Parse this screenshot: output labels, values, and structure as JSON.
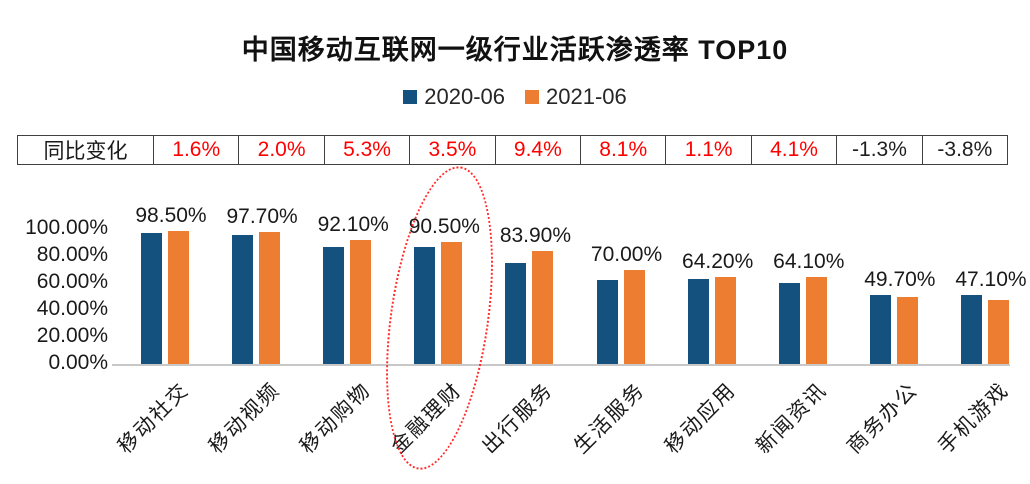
{
  "title": "中国移动互联网一级行业活跃渗透率 TOP10",
  "legend": {
    "items": [
      {
        "label": "2020-06",
        "color": "#14517F"
      },
      {
        "label": "2021-06",
        "color": "#ED7D31"
      }
    ]
  },
  "yoy_table": {
    "row_label": "同比变化",
    "values": [
      "1.6%",
      "2.0%",
      "5.3%",
      "3.5%",
      "9.4%",
      "8.1%",
      "1.1%",
      "4.1%",
      "-1.3%",
      "-3.8%"
    ],
    "positive_color": "#FF0000",
    "negative_color": "#1F1F1F"
  },
  "chart_data": {
    "type": "bar",
    "title": "中国移动互联网一级行业活跃渗透率 TOP10",
    "categories": [
      "移动社交",
      "移动视频",
      "移动购物",
      "金融理财",
      "出行服务",
      "生活服务",
      "移动应用",
      "新闻资讯",
      "商务办公",
      "手机游戏"
    ],
    "series": [
      {
        "name": "2020-06",
        "color": "#14517F",
        "values": [
          96.9,
          95.7,
          86.8,
          87.0,
          74.5,
          61.9,
          63.1,
          60.0,
          51.0,
          50.9
        ]
      },
      {
        "name": "2021-06",
        "color": "#ED7D31",
        "values": [
          98.5,
          97.7,
          92.1,
          90.5,
          83.9,
          70.0,
          64.2,
          64.1,
          49.7,
          47.1
        ]
      }
    ],
    "data_labels": [
      "98.50%",
      "97.70%",
      "92.10%",
      "90.50%",
      "83.90%",
      "70.00%",
      "64.20%",
      "64.10%",
      "49.70%",
      "47.10%"
    ],
    "y_ticks": [
      "100.00%",
      "80.00%",
      "60.00%",
      "40.00%",
      "20.00%",
      "0.00%"
    ],
    "ylim": [
      0,
      100
    ],
    "grid": false,
    "legend_position": "top",
    "highlight": {
      "category": "金融理财",
      "shape": "red-dotted-ellipse"
    }
  }
}
